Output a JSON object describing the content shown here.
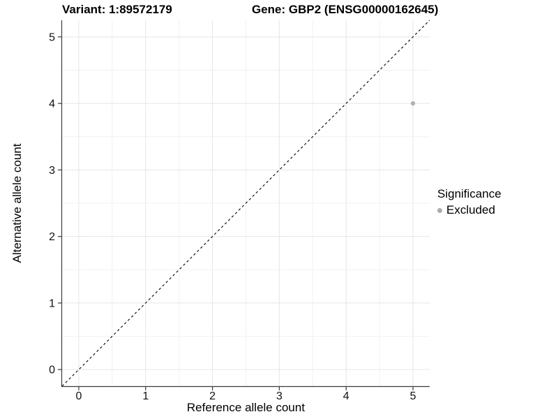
{
  "chart_data": {
    "type": "scatter",
    "titles": {
      "left": "Variant: 1:89572179",
      "right": "Gene: GBP2 (ENSG00000162645)"
    },
    "xlabel": "Reference allele count",
    "ylabel": "Alternative allele count",
    "xlim": [
      -0.25,
      5.25
    ],
    "ylim": [
      -0.25,
      5.25
    ],
    "xticks": [
      0,
      1,
      2,
      3,
      4,
      5
    ],
    "yticks": [
      0,
      1,
      2,
      3,
      4,
      5
    ],
    "grid": {
      "major": true,
      "minor": true,
      "minor_step": 0.5
    },
    "points": [
      {
        "x": 5,
        "y": 4,
        "significance": "Excluded"
      }
    ],
    "identity_line": {
      "slope": 1,
      "intercept": 0,
      "style": "dashed"
    },
    "legend": {
      "title": "Significance",
      "position": "right",
      "entries": [
        {
          "label": "Excluded",
          "color": "#ababab",
          "marker": "circle"
        }
      ]
    }
  },
  "colors": {
    "background": "#ffffff",
    "grid_major": "#e5e5e5",
    "grid_minor": "#f1f1f1",
    "axis": "#3a3a3a",
    "identity_line": "#000000",
    "point": "#b0b0b0",
    "text": "#111111"
  }
}
